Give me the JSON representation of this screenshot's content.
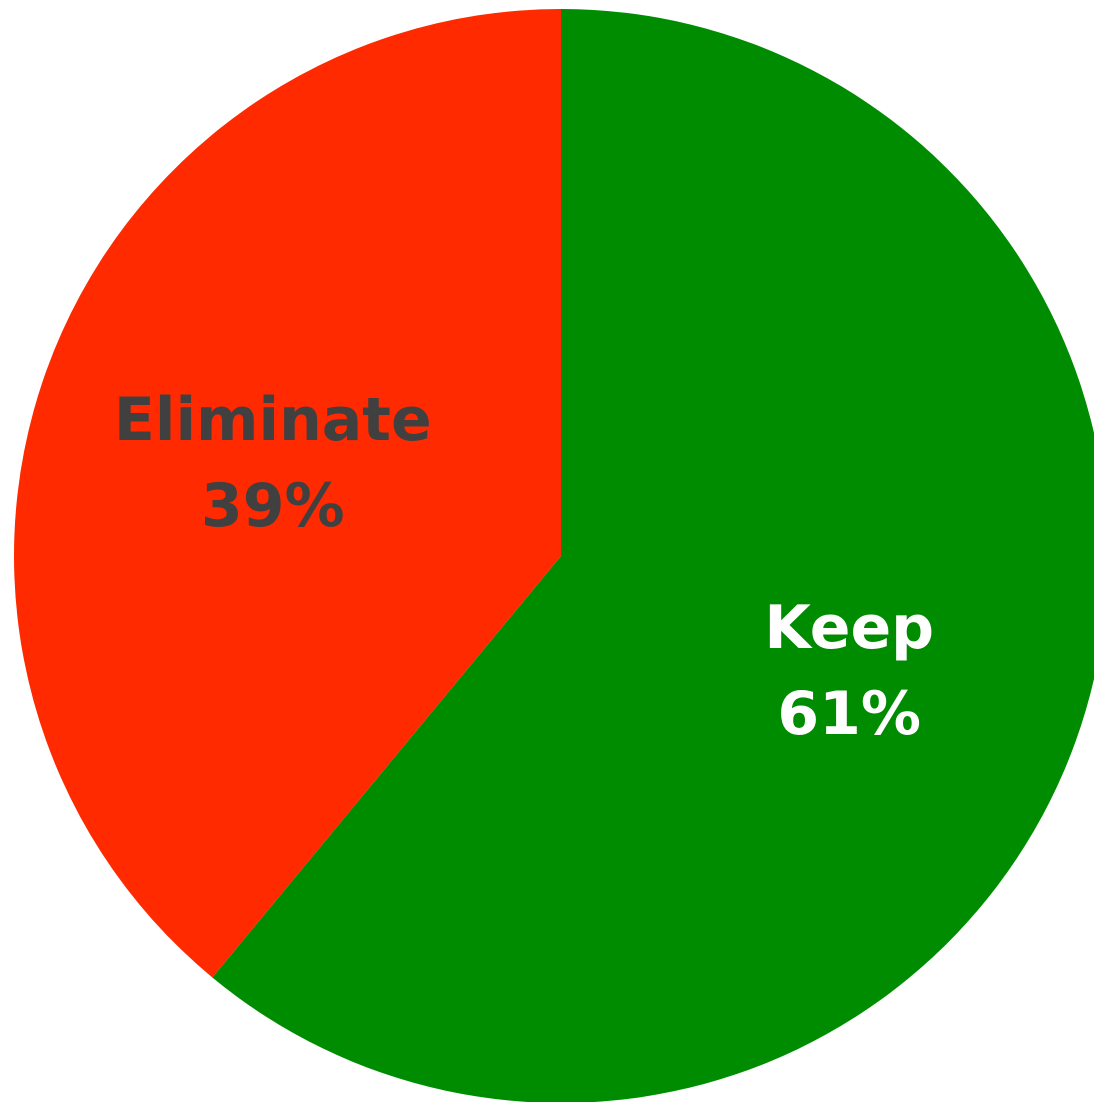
{
  "chart_data": {
    "type": "pie",
    "start_angle_deg": 0,
    "direction": "clockwise",
    "slices": [
      {
        "label": "Keep",
        "value_label": "61%",
        "value": 61,
        "color": "#008c00",
        "label_color": "#ffffff"
      },
      {
        "label": "Eliminate",
        "value_label": "39%",
        "value": 39,
        "color": "#ff2a00",
        "label_color": "#404040"
      }
    ]
  }
}
